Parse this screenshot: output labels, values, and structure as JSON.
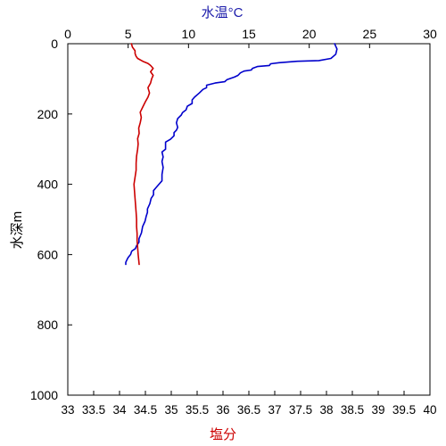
{
  "chart_data": {
    "type": "line",
    "title": "",
    "y_axis": {
      "label": "水深m",
      "range": [
        0,
        1000
      ],
      "inverted": true,
      "ticks": [
        0,
        200,
        400,
        600,
        800,
        1000
      ],
      "tick_labels": [
        "0",
        "200",
        "400",
        "600",
        "800",
        "1000"
      ]
    },
    "top_axis": {
      "label": "水温°C",
      "range": [
        0,
        30
      ],
      "ticks": [
        0,
        5,
        10,
        15,
        20,
        25,
        30
      ],
      "tick_labels": [
        "0",
        "5",
        "10",
        "15",
        "20",
        "25",
        "30"
      ]
    },
    "bottom_axis": {
      "label": "塩分",
      "range": [
        33,
        40
      ],
      "ticks": [
        33,
        33.5,
        34,
        34.5,
        35,
        35.5,
        36,
        36.5,
        37,
        37.5,
        38,
        38.5,
        39,
        39.5,
        40
      ],
      "tick_labels": [
        "33",
        "33.5",
        "34",
        "34.5",
        "35",
        "35.5",
        "36",
        "36.5",
        "37",
        "37.5",
        "38",
        "38.5",
        "39",
        "39.5",
        "40"
      ]
    },
    "grid": false,
    "series": [
      {
        "axis": "top",
        "color": "#0000cc",
        "points": [
          [
            22.1,
            0
          ],
          [
            22.3,
            15
          ],
          [
            22.2,
            30
          ],
          [
            21.8,
            42
          ],
          [
            20.8,
            48
          ],
          [
            19,
            50
          ],
          [
            17.5,
            54
          ],
          [
            16.8,
            57
          ],
          [
            16.7,
            62
          ],
          [
            15.7,
            65
          ],
          [
            15.3,
            70
          ],
          [
            15.2,
            75
          ],
          [
            14.6,
            78
          ],
          [
            14.3,
            83
          ],
          [
            14.1,
            90
          ],
          [
            13.8,
            95
          ],
          [
            13.2,
            102
          ],
          [
            13,
            108
          ],
          [
            12.2,
            112
          ],
          [
            11.5,
            118
          ],
          [
            11.5,
            125
          ],
          [
            11.2,
            130
          ],
          [
            10.9,
            140
          ],
          [
            10.5,
            152
          ],
          [
            10.3,
            160
          ],
          [
            10.3,
            170
          ],
          [
            9.9,
            178
          ],
          [
            9.8,
            188
          ],
          [
            9.5,
            196
          ],
          [
            9.4,
            203
          ],
          [
            9.1,
            213
          ],
          [
            9,
            225
          ],
          [
            9.1,
            238
          ],
          [
            9,
            246
          ],
          [
            8.8,
            253
          ],
          [
            8.8,
            262
          ],
          [
            8.5,
            272
          ],
          [
            8.1,
            280
          ],
          [
            8.1,
            292
          ],
          [
            8.1,
            300
          ],
          [
            7.8,
            308
          ],
          [
            7.9,
            322
          ],
          [
            7.8,
            335
          ],
          [
            7.9,
            352
          ],
          [
            7.8,
            372
          ],
          [
            7.8,
            390
          ],
          [
            7.5,
            402
          ],
          [
            7.3,
            410
          ],
          [
            7.1,
            418
          ],
          [
            7.1,
            430
          ],
          [
            6.9,
            440
          ],
          [
            6.8,
            455
          ],
          [
            6.6,
            470
          ],
          [
            6.6,
            480
          ],
          [
            6.5,
            490
          ],
          [
            6.4,
            505
          ],
          [
            6.2,
            520
          ],
          [
            6.1,
            538
          ],
          [
            5.9,
            555
          ],
          [
            5.9,
            565
          ],
          [
            5.7,
            575
          ],
          [
            5.6,
            583
          ],
          [
            5.3,
            590
          ],
          [
            5.2,
            600
          ],
          [
            5,
            608
          ],
          [
            4.9,
            615
          ],
          [
            4.8,
            622
          ],
          [
            4.8,
            628
          ]
        ]
      },
      {
        "axis": "bottom",
        "color": "#cc0000",
        "points": [
          [
            34.23,
            0
          ],
          [
            34.25,
            10
          ],
          [
            34.3,
            20
          ],
          [
            34.3,
            28
          ],
          [
            34.32,
            36
          ],
          [
            34.35,
            42
          ],
          [
            34.45,
            50
          ],
          [
            34.55,
            56
          ],
          [
            34.6,
            62
          ],
          [
            34.65,
            70
          ],
          [
            34.6,
            80
          ],
          [
            34.65,
            90
          ],
          [
            34.62,
            100
          ],
          [
            34.6,
            112
          ],
          [
            34.55,
            125
          ],
          [
            34.58,
            140
          ],
          [
            34.55,
            152
          ],
          [
            34.5,
            165
          ],
          [
            34.45,
            180
          ],
          [
            34.4,
            195
          ],
          [
            34.42,
            210
          ],
          [
            34.4,
            225
          ],
          [
            34.37,
            240
          ],
          [
            34.38,
            255
          ],
          [
            34.35,
            270
          ],
          [
            34.36,
            285
          ],
          [
            34.35,
            300
          ],
          [
            34.33,
            320
          ],
          [
            34.32,
            340
          ],
          [
            34.32,
            360
          ],
          [
            34.3,
            380
          ],
          [
            34.28,
            400
          ],
          [
            34.29,
            420
          ],
          [
            34.3,
            440
          ],
          [
            34.31,
            460
          ],
          [
            34.32,
            480
          ],
          [
            34.33,
            500
          ],
          [
            34.33,
            520
          ],
          [
            34.34,
            540
          ],
          [
            34.34,
            560
          ],
          [
            34.35,
            580
          ],
          [
            34.36,
            600
          ],
          [
            34.37,
            615
          ],
          [
            34.38,
            628
          ]
        ]
      }
    ]
  }
}
